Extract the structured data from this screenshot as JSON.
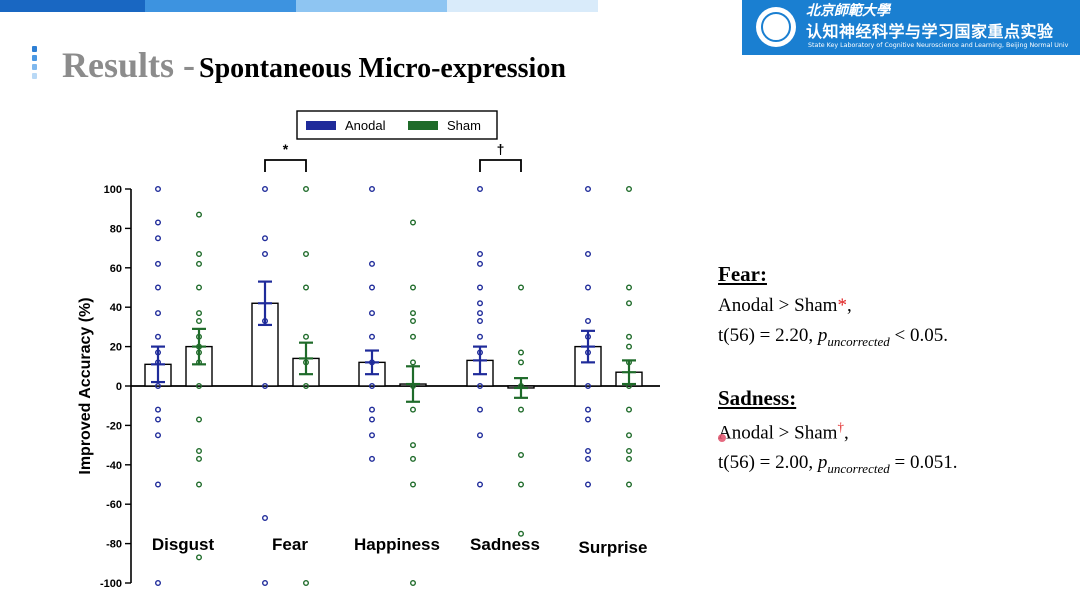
{
  "colors": {
    "topbar": [
      "#1967c2",
      "#3d93e0",
      "#8ec5f2",
      "#d9ebfa"
    ],
    "logo_bg": "#1a7fd1",
    "anodal": "#1f2b9a",
    "sham": "#1f6b2a",
    "accent_red": "#e02020",
    "title_marker": [
      "#2d7fd4",
      "#4a98e3",
      "#7fb8ee",
      "#b9d9f6"
    ]
  },
  "header": {
    "university_script": "北京師範大學",
    "lab_name": "认知神经科学与学习国家重点实验",
    "lab_name_en": "State Key Laboratory of Cognitive Neuroscience and Learning, Beijing Normal Univ"
  },
  "slide": {
    "title_main": "Results -",
    "title_sub": "Spontaneous Micro-expression"
  },
  "chart_data": {
    "type": "bar",
    "ylabel": "Improved Accuracy (%)",
    "xlabel": "",
    "ylim": [
      -100,
      100
    ],
    "yticks": [
      100,
      80,
      60,
      40,
      20,
      0,
      -20,
      -40,
      -60,
      -80,
      -100
    ],
    "categories": [
      "Disgust",
      "Fear",
      "Happiness",
      "Sadness",
      "Surprise"
    ],
    "legend": [
      "Anodal",
      "Sham"
    ],
    "legend_position": "top-center",
    "series": [
      {
        "name": "Anodal",
        "values": [
          11,
          42,
          12,
          13,
          20
        ],
        "errors": [
          9,
          11,
          6,
          7,
          8
        ],
        "points": [
          [
            100,
            83,
            75,
            62,
            50,
            37,
            25,
            17,
            12,
            0,
            -12,
            -17,
            -25,
            -50,
            -100
          ],
          [
            100,
            75,
            67,
            33,
            0,
            -67,
            -100
          ],
          [
            100,
            62,
            50,
            37,
            25,
            12,
            0,
            -12,
            -17,
            -25,
            -37
          ],
          [
            100,
            67,
            62,
            50,
            42,
            37,
            33,
            25,
            17,
            0,
            -12,
            -25,
            -50
          ],
          [
            100,
            67,
            50,
            33,
            25,
            17,
            0,
            -12,
            -17,
            -33,
            -37,
            -50
          ]
        ]
      },
      {
        "name": "Sham",
        "values": [
          20,
          14,
          1,
          -1,
          7
        ],
        "errors": [
          9,
          8,
          9,
          5,
          6
        ],
        "points": [
          [
            87,
            67,
            62,
            50,
            37,
            33,
            25,
            20,
            17,
            12,
            0,
            -17,
            -33,
            -37,
            -50,
            -87
          ],
          [
            100,
            67,
            50,
            25,
            12,
            0,
            -100
          ],
          [
            83,
            50,
            37,
            33,
            25,
            12,
            0,
            -12,
            -30,
            -37,
            -50,
            -100
          ],
          [
            50,
            17,
            12,
            0,
            -12,
            -35,
            -50,
            -75
          ],
          [
            100,
            50,
            42,
            25,
            20,
            12,
            0,
            -12,
            -25,
            -33,
            -37,
            -50
          ]
        ]
      }
    ],
    "annotations": [
      {
        "category": "Fear",
        "symbol": "*"
      },
      {
        "category": "Sadness",
        "symbol": "†"
      }
    ]
  },
  "stats": {
    "fear": {
      "heading": "Fear:",
      "comparison": "Anodal > Sham",
      "mark": "*",
      "punct": ",",
      "stat": "t(56) = 2.20,",
      "p_label": "p",
      "p_sub": "uncorrected",
      "p_value": "< 0.05."
    },
    "sadness": {
      "heading": "Sadness:",
      "comparison": "Anodal > Sham",
      "mark": "†",
      "punct": ",",
      "stat": "t(56) = 2.00,",
      "p_label": "p",
      "p_sub": "uncorrected",
      "p_value": "= 0.051."
    }
  }
}
